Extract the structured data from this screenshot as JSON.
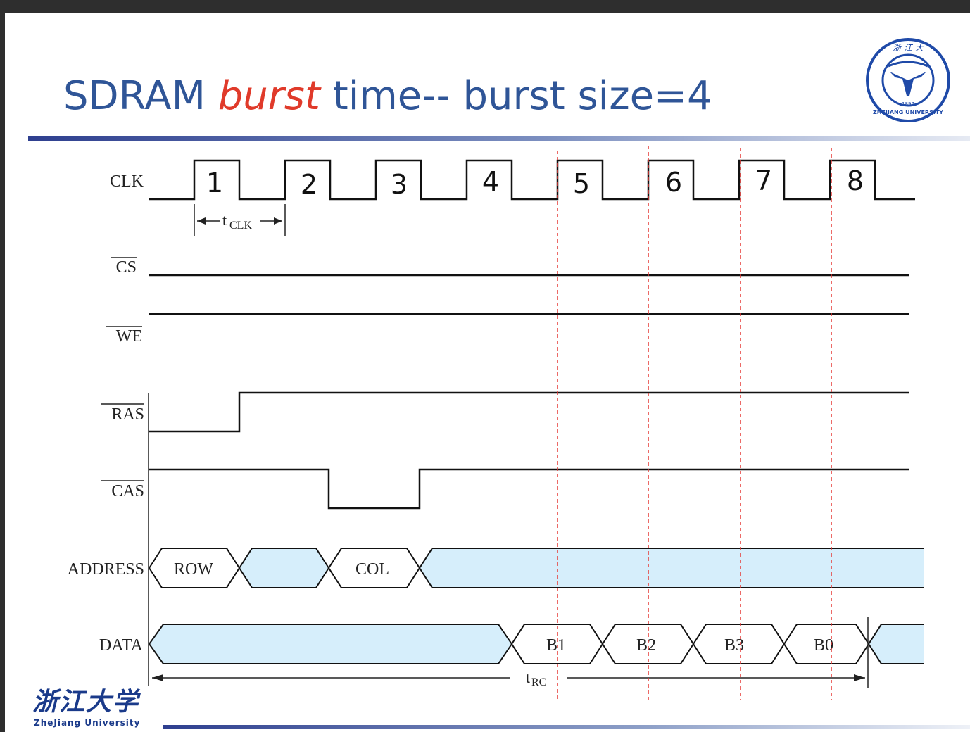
{
  "slide": {
    "title_pre": "SDRAM ",
    "title_emph": "burst",
    "title_post": " time-- burst size=4"
  },
  "signals": {
    "clk": "CLK",
    "cs": "CS",
    "we": "WE",
    "ras": "RAS",
    "cas": "CAS",
    "address": "ADDRESS",
    "data": "DATA"
  },
  "clock_cycles": [
    "1",
    "2",
    "3",
    "4",
    "5",
    "6",
    "7",
    "8"
  ],
  "address_bus": {
    "row": "ROW",
    "col": "COL"
  },
  "data_bus": [
    "B1",
    "B2",
    "B3",
    "B0"
  ],
  "timing": {
    "tclk_main": "t",
    "tclk_sub": "CLK",
    "trc_main": "t",
    "trc_sub": "RC"
  },
  "logo": {
    "seal_year": "1897",
    "seal_text": "ZHEJIANG UNIVERSITY",
    "wordmark_cn": "浙江大学",
    "wordmark_en": "ZheJiang University"
  },
  "colors": {
    "title": "#2f5597",
    "emphasis": "#e03a2a",
    "bus_fill": "#d6eefb",
    "marker": "#e53935"
  }
}
